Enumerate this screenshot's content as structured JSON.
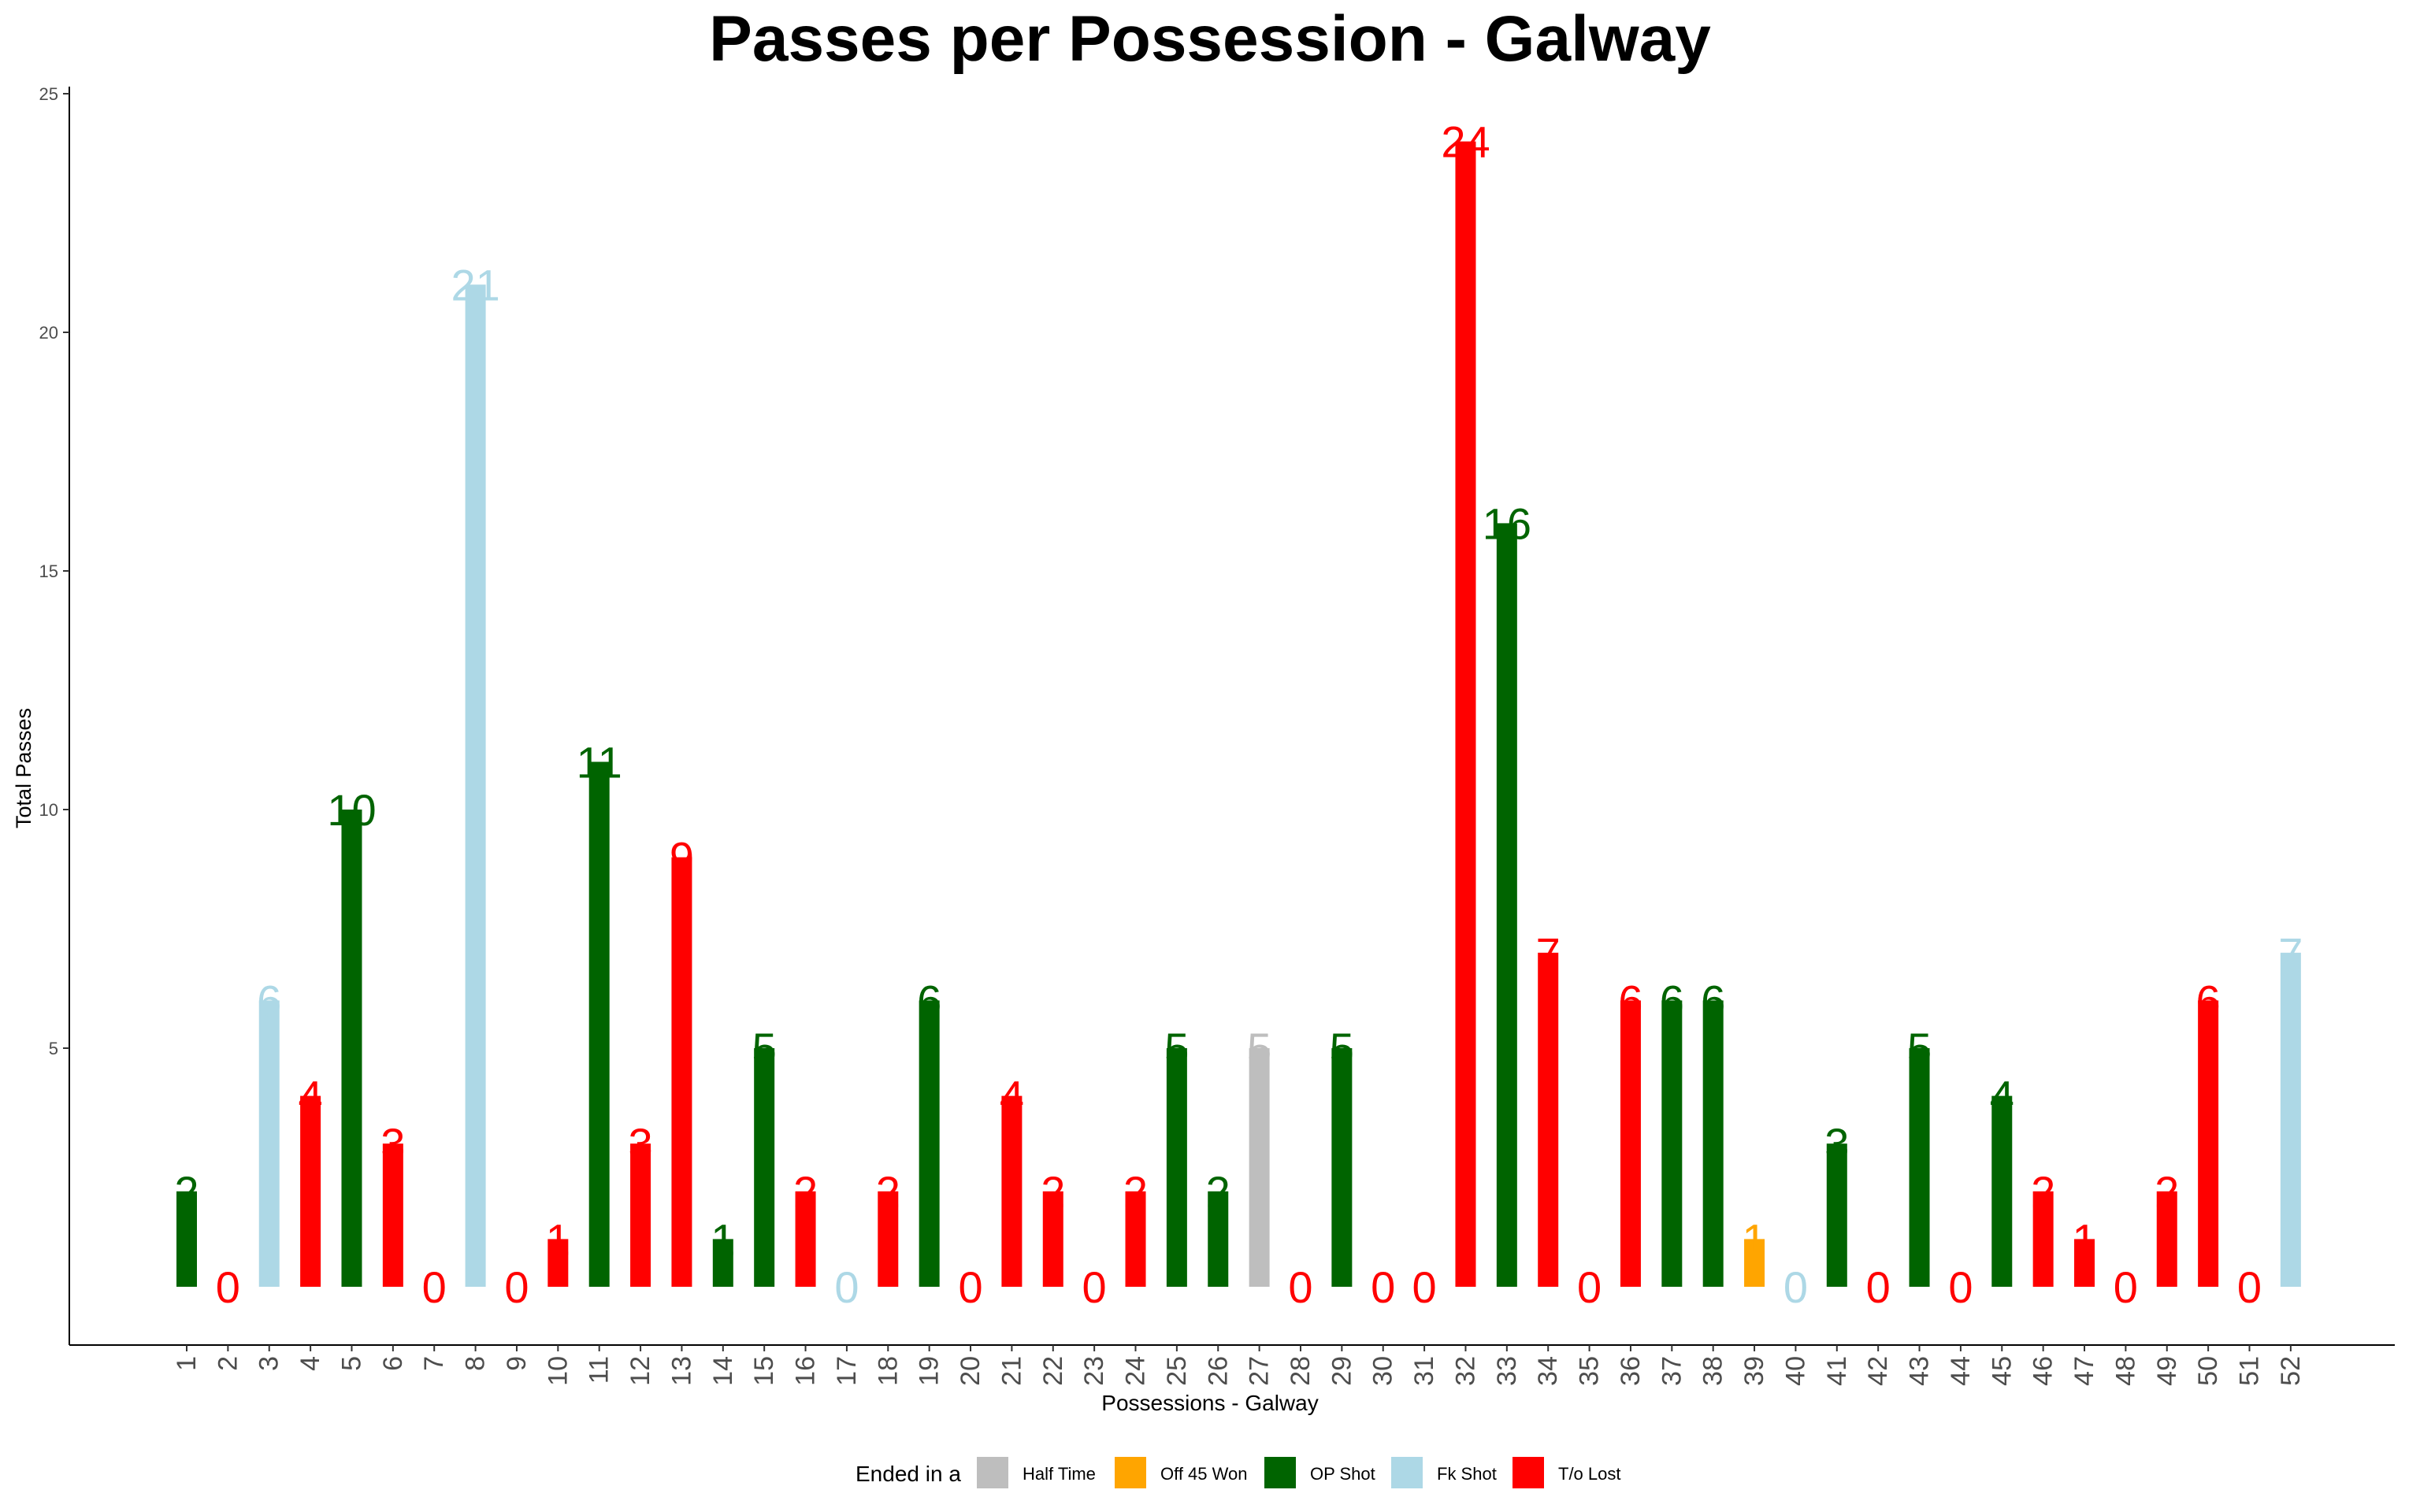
{
  "chart_data": {
    "type": "bar",
    "title": "Passes per Possession - Galway",
    "xlabel": "Possessions - Galway",
    "ylabel": "Total Passes",
    "ylim": [
      0,
      25
    ],
    "yticks": [
      5,
      10,
      15,
      20,
      25
    ],
    "grid": false,
    "legend": {
      "title": "Ended in a",
      "placement": "bottom",
      "items": [
        {
          "label": "Half Time",
          "color": "#BEBEBE"
        },
        {
          "label": "Off 45 Won",
          "color": "#FFA500"
        },
        {
          "label": "OP Shot",
          "color": "#006400"
        },
        {
          "label": "Fk Shot",
          "color": "#ADD8E6"
        },
        {
          "label": "T/o Lost",
          "color": "#FF0000"
        }
      ]
    },
    "categories": [
      "1",
      "2",
      "3",
      "4",
      "5",
      "6",
      "7",
      "8",
      "9",
      "10",
      "11",
      "12",
      "13",
      "14",
      "15",
      "16",
      "17",
      "18",
      "19",
      "20",
      "21",
      "22",
      "23",
      "24",
      "25",
      "26",
      "27",
      "28",
      "29",
      "30",
      "31",
      "32",
      "33",
      "34",
      "35",
      "36",
      "37",
      "38",
      "39",
      "40",
      "41",
      "42",
      "43",
      "44",
      "45",
      "46",
      "47",
      "48",
      "49",
      "50",
      "51",
      "52"
    ],
    "values": [
      2,
      0,
      6,
      4,
      10,
      3,
      0,
      21,
      0,
      1,
      11,
      3,
      9,
      1,
      5,
      2,
      0,
      2,
      6,
      0,
      4,
      2,
      0,
      2,
      5,
      2,
      5,
      0,
      5,
      0,
      0,
      24,
      16,
      7,
      0,
      6,
      6,
      6,
      1,
      0,
      3,
      0,
      5,
      0,
      4,
      2,
      1,
      0,
      2,
      6,
      0,
      7
    ],
    "outcomes": [
      "OP Shot",
      "T/o Lost",
      "Fk Shot",
      "T/o Lost",
      "OP Shot",
      "T/o Lost",
      "T/o Lost",
      "Fk Shot",
      "T/o Lost",
      "T/o Lost",
      "OP Shot",
      "T/o Lost",
      "T/o Lost",
      "OP Shot",
      "OP Shot",
      "T/o Lost",
      "Fk Shot",
      "T/o Lost",
      "OP Shot",
      "T/o Lost",
      "T/o Lost",
      "T/o Lost",
      "T/o Lost",
      "T/o Lost",
      "OP Shot",
      "OP Shot",
      "Half Time",
      "T/o Lost",
      "OP Shot",
      "T/o Lost",
      "T/o Lost",
      "T/o Lost",
      "OP Shot",
      "T/o Lost",
      "T/o Lost",
      "T/o Lost",
      "OP Shot",
      "OP Shot",
      "Off 45 Won",
      "Fk Shot",
      "OP Shot",
      "T/o Lost",
      "OP Shot",
      "T/o Lost",
      "OP Shot",
      "T/o Lost",
      "T/o Lost",
      "T/o Lost",
      "T/o Lost",
      "T/o Lost",
      "T/o Lost",
      "Fk Shot"
    ]
  }
}
